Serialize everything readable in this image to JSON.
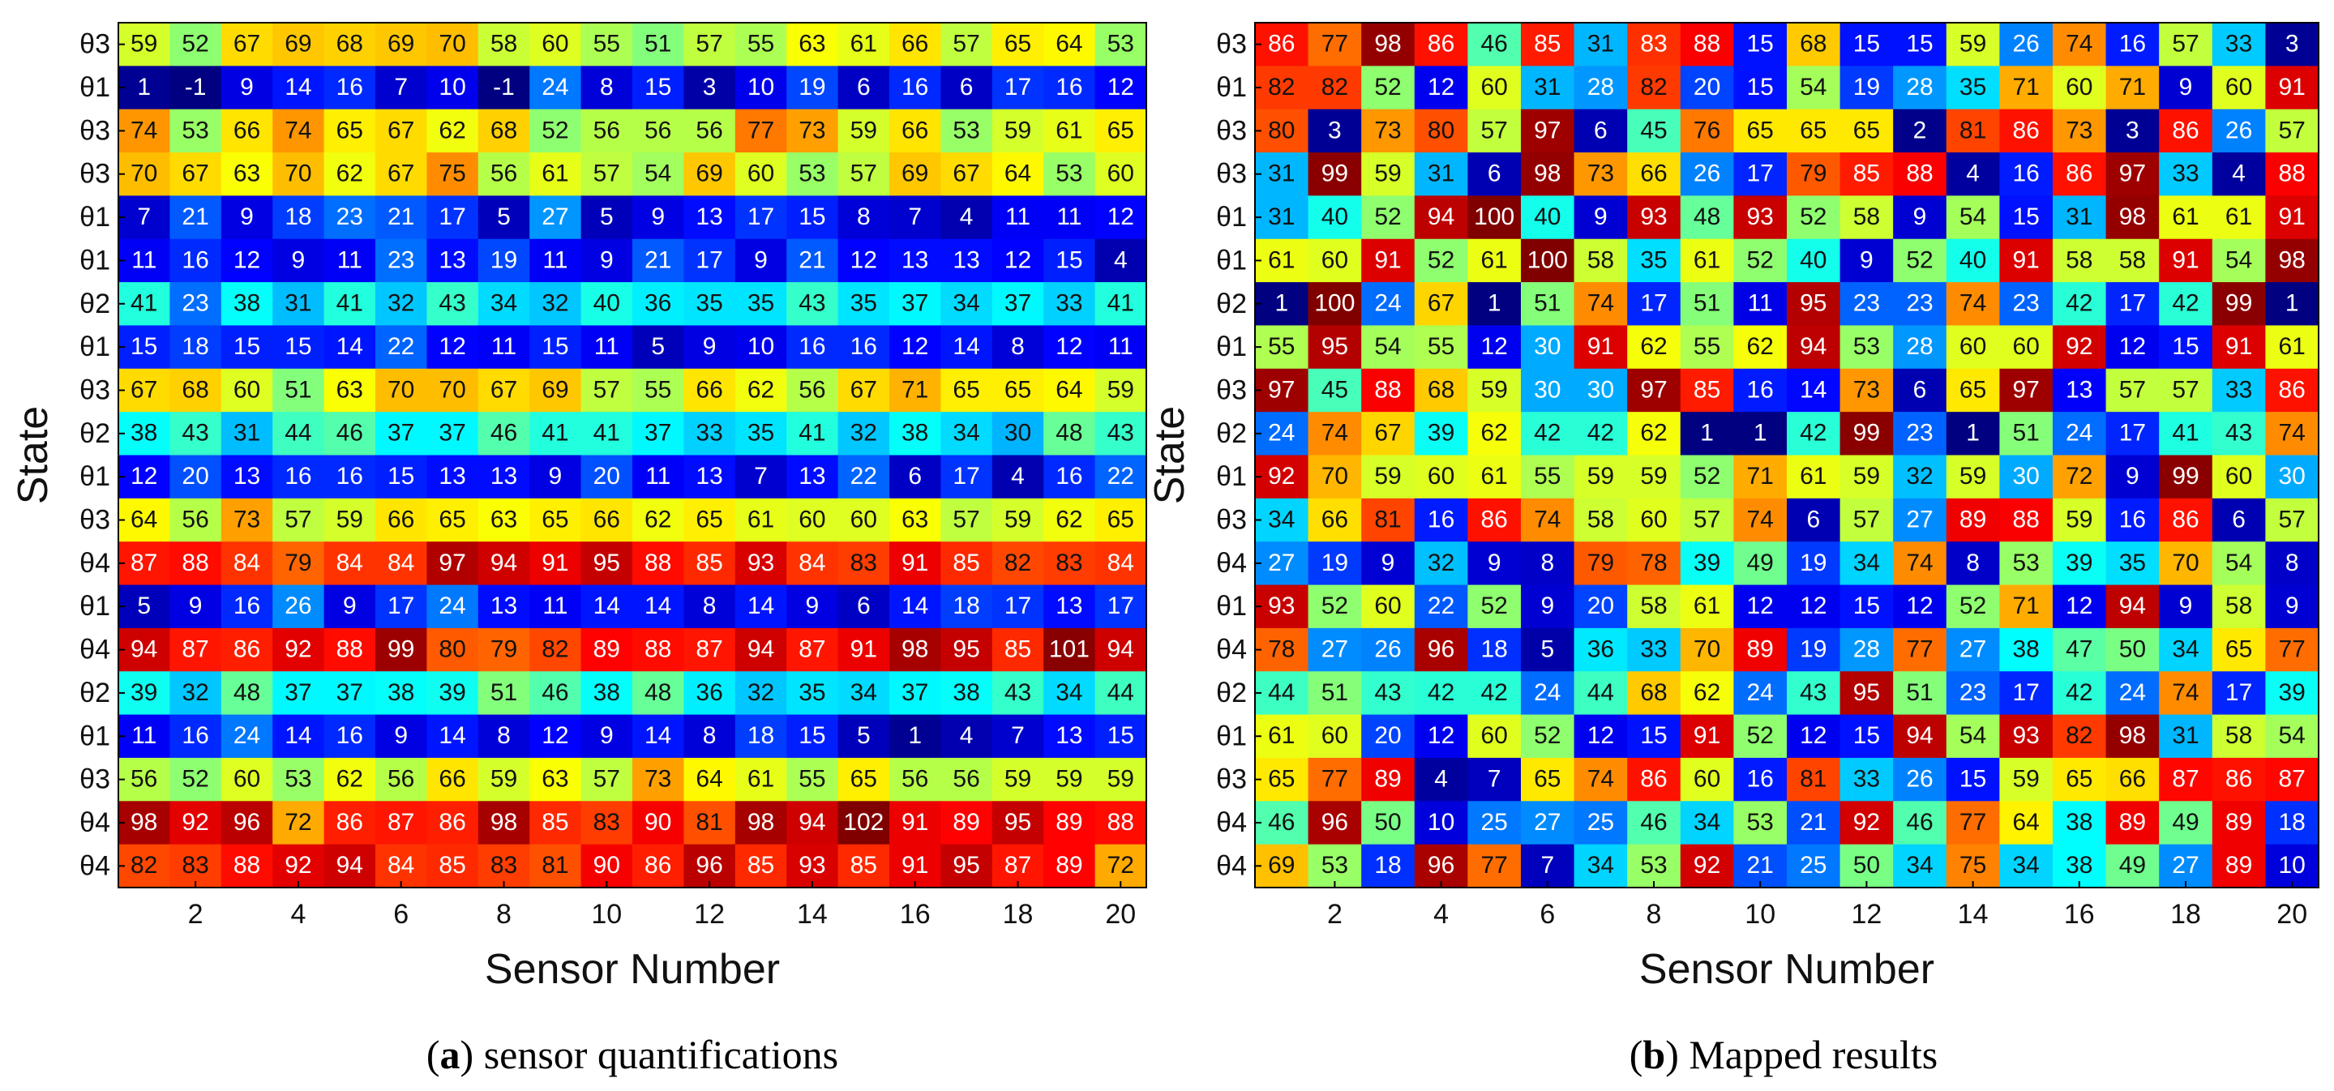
{
  "chart_data": [
    {
      "type": "heatmap",
      "caption_label": "a",
      "caption_text": "sensor quantifications",
      "xlabel": "Sensor Number",
      "ylabel": "State",
      "x_ticks": [
        2,
        4,
        6,
        8,
        10,
        12,
        14,
        16,
        18,
        20
      ],
      "color_scale": "jet",
      "value_range": [
        -1,
        102
      ],
      "row_labels": [
        "θ3",
        "θ1",
        "θ3",
        "θ3",
        "θ1",
        "θ1",
        "θ2",
        "θ1",
        "θ3",
        "θ2",
        "θ1",
        "θ3",
        "θ4",
        "θ1",
        "θ4",
        "θ2",
        "θ1",
        "θ3",
        "θ4",
        "θ4"
      ],
      "values": [
        [
          59,
          52,
          67,
          69,
          68,
          69,
          70,
          58,
          60,
          55,
          51,
          57,
          55,
          63,
          61,
          66,
          57,
          65,
          64,
          53
        ],
        [
          1,
          -1,
          9,
          14,
          16,
          7,
          10,
          -1,
          24,
          8,
          15,
          3,
          10,
          19,
          6,
          16,
          6,
          17,
          16,
          12
        ],
        [
          74,
          53,
          66,
          74,
          65,
          67,
          62,
          68,
          52,
          56,
          56,
          56,
          77,
          73,
          59,
          66,
          53,
          59,
          61,
          65
        ],
        [
          70,
          67,
          63,
          70,
          62,
          67,
          75,
          56,
          61,
          57,
          54,
          69,
          60,
          53,
          57,
          69,
          67,
          64,
          53,
          60
        ],
        [
          7,
          21,
          9,
          18,
          23,
          21,
          17,
          5,
          27,
          5,
          9,
          13,
          17,
          15,
          8,
          7,
          4,
          11,
          11,
          12
        ],
        [
          11,
          16,
          12,
          9,
          11,
          23,
          13,
          19,
          11,
          9,
          21,
          17,
          9,
          21,
          12,
          13,
          13,
          12,
          15,
          4
        ],
        [
          41,
          23,
          38,
          31,
          41,
          32,
          43,
          34,
          32,
          40,
          36,
          35,
          35,
          43,
          35,
          37,
          34,
          37,
          33,
          41
        ],
        [
          15,
          18,
          15,
          15,
          14,
          22,
          12,
          11,
          15,
          11,
          5,
          9,
          10,
          16,
          16,
          12,
          14,
          8,
          12,
          11
        ],
        [
          67,
          68,
          60,
          51,
          63,
          70,
          70,
          67,
          69,
          57,
          55,
          66,
          62,
          56,
          67,
          71,
          65,
          65,
          64,
          59
        ],
        [
          38,
          43,
          31,
          44,
          46,
          37,
          37,
          46,
          41,
          41,
          37,
          33,
          35,
          41,
          32,
          38,
          34,
          30,
          48,
          43
        ],
        [
          12,
          20,
          13,
          16,
          16,
          15,
          13,
          13,
          9,
          20,
          11,
          13,
          7,
          13,
          22,
          6,
          17,
          4,
          16,
          22
        ],
        [
          64,
          56,
          73,
          57,
          59,
          66,
          65,
          63,
          65,
          66,
          62,
          65,
          61,
          60,
          60,
          63,
          57,
          59,
          62,
          65
        ],
        [
          87,
          88,
          84,
          79,
          84,
          84,
          97,
          94,
          91,
          95,
          88,
          85,
          93,
          84,
          83,
          91,
          85,
          82,
          83,
          84
        ],
        [
          5,
          9,
          16,
          26,
          9,
          17,
          24,
          13,
          11,
          14,
          14,
          8,
          14,
          9,
          6,
          14,
          18,
          17,
          13,
          17
        ],
        [
          94,
          87,
          86,
          92,
          88,
          99,
          80,
          79,
          82,
          89,
          88,
          87,
          94,
          87,
          91,
          98,
          95,
          85,
          101,
          94
        ],
        [
          39,
          32,
          48,
          37,
          37,
          38,
          39,
          51,
          46,
          38,
          48,
          36,
          32,
          35,
          34,
          37,
          38,
          43,
          34,
          44
        ],
        [
          11,
          16,
          24,
          14,
          16,
          9,
          14,
          8,
          12,
          9,
          14,
          8,
          18,
          15,
          5,
          1,
          4,
          7,
          13,
          15
        ],
        [
          56,
          52,
          60,
          53,
          62,
          56,
          66,
          59,
          63,
          57,
          73,
          64,
          61,
          55,
          65,
          56,
          56,
          59,
          59,
          59
        ],
        [
          98,
          92,
          96,
          72,
          86,
          87,
          86,
          98,
          85,
          83,
          90,
          81,
          98,
          94,
          102,
          91,
          89,
          95,
          89,
          88
        ],
        [
          82,
          83,
          88,
          92,
          94,
          84,
          85,
          83,
          81,
          90,
          86,
          96,
          85,
          93,
          85,
          91,
          95,
          87,
          89,
          72
        ]
      ]
    },
    {
      "type": "heatmap",
      "caption_label": "b",
      "caption_text": "Mapped results",
      "xlabel": "Sensor Number",
      "ylabel": "State",
      "x_ticks": [
        2,
        4,
        6,
        8,
        10,
        12,
        14,
        16,
        18,
        20
      ],
      "color_scale": "jet",
      "value_range": [
        1,
        100
      ],
      "row_labels": [
        "θ3",
        "θ1",
        "θ3",
        "θ3",
        "θ1",
        "θ1",
        "θ2",
        "θ1",
        "θ3",
        "θ2",
        "θ1",
        "θ3",
        "θ4",
        "θ1",
        "θ4",
        "θ2",
        "θ1",
        "θ3",
        "θ4",
        "θ4"
      ],
      "values": [
        [
          86,
          77,
          98,
          86,
          46,
          85,
          31,
          83,
          88,
          15,
          68,
          15,
          15,
          59,
          26,
          74,
          16,
          57,
          33,
          3
        ],
        [
          82,
          82,
          52,
          12,
          60,
          31,
          28,
          82,
          20,
          15,
          54,
          19,
          28,
          35,
          71,
          60,
          71,
          9,
          60,
          91
        ],
        [
          80,
          3,
          73,
          80,
          57,
          97,
          6,
          45,
          76,
          65,
          65,
          65,
          2,
          81,
          86,
          73,
          3,
          86,
          26,
          57
        ],
        [
          31,
          99,
          59,
          31,
          6,
          98,
          73,
          66,
          26,
          17,
          79,
          85,
          88,
          4,
          16,
          86,
          97,
          33,
          4,
          88
        ],
        [
          31,
          40,
          52,
          94,
          100,
          40,
          9,
          93,
          48,
          93,
          52,
          58,
          9,
          54,
          15,
          31,
          98,
          61,
          61,
          91
        ],
        [
          61,
          60,
          91,
          52,
          61,
          100,
          58,
          35,
          61,
          52,
          40,
          9,
          52,
          40,
          91,
          58,
          58,
          91,
          54,
          98
        ],
        [
          1,
          100,
          24,
          67,
          1,
          51,
          74,
          17,
          51,
          11,
          95,
          23,
          23,
          74,
          23,
          42,
          17,
          42,
          99,
          1
        ],
        [
          55,
          95,
          54,
          55,
          12,
          30,
          91,
          62,
          55,
          62,
          94,
          53,
          28,
          60,
          60,
          92,
          12,
          15,
          91,
          61
        ],
        [
          97,
          45,
          88,
          68,
          59,
          30,
          30,
          97,
          85,
          16,
          14,
          73,
          6,
          65,
          97,
          13,
          57,
          57,
          33,
          86
        ],
        [
          24,
          74,
          67,
          39,
          62,
          42,
          42,
          62,
          1,
          1,
          42,
          99,
          23,
          1,
          51,
          24,
          17,
          41,
          43,
          74
        ],
        [
          92,
          70,
          59,
          60,
          61,
          55,
          59,
          59,
          52,
          71,
          61,
          59,
          32,
          59,
          30,
          72,
          9,
          99,
          60,
          30
        ],
        [
          34,
          66,
          81,
          16,
          86,
          74,
          58,
          60,
          57,
          74,
          6,
          57,
          27,
          89,
          88,
          59,
          16,
          86,
          6,
          57
        ],
        [
          27,
          19,
          9,
          32,
          9,
          8,
          79,
          78,
          39,
          49,
          19,
          34,
          74,
          8,
          53,
          39,
          35,
          70,
          54,
          8
        ],
        [
          93,
          52,
          60,
          22,
          52,
          9,
          20,
          58,
          61,
          12,
          12,
          15,
          12,
          52,
          71,
          12,
          94,
          9,
          58,
          9
        ],
        [
          78,
          27,
          26,
          96,
          18,
          5,
          36,
          33,
          70,
          89,
          19,
          28,
          77,
          27,
          38,
          47,
          50,
          34,
          65,
          77
        ],
        [
          44,
          51,
          43,
          42,
          42,
          24,
          44,
          68,
          62,
          24,
          43,
          95,
          51,
          23,
          17,
          42,
          24,
          74,
          17,
          39
        ],
        [
          61,
          60,
          20,
          12,
          60,
          52,
          12,
          15,
          91,
          52,
          12,
          15,
          94,
          54,
          93,
          82,
          98,
          31,
          58,
          54
        ],
        [
          65,
          77,
          89,
          4,
          7,
          65,
          74,
          86,
          60,
          16,
          81,
          33,
          26,
          15,
          59,
          65,
          66,
          87,
          86,
          87
        ],
        [
          46,
          96,
          50,
          10,
          25,
          27,
          25,
          46,
          34,
          53,
          21,
          92,
          46,
          77,
          64,
          38,
          89,
          49,
          89,
          18
        ],
        [
          69,
          53,
          18,
          96,
          77,
          7,
          34,
          53,
          92,
          21,
          25,
          50,
          34,
          75,
          34,
          38,
          49,
          27,
          89,
          10
        ]
      ]
    }
  ]
}
